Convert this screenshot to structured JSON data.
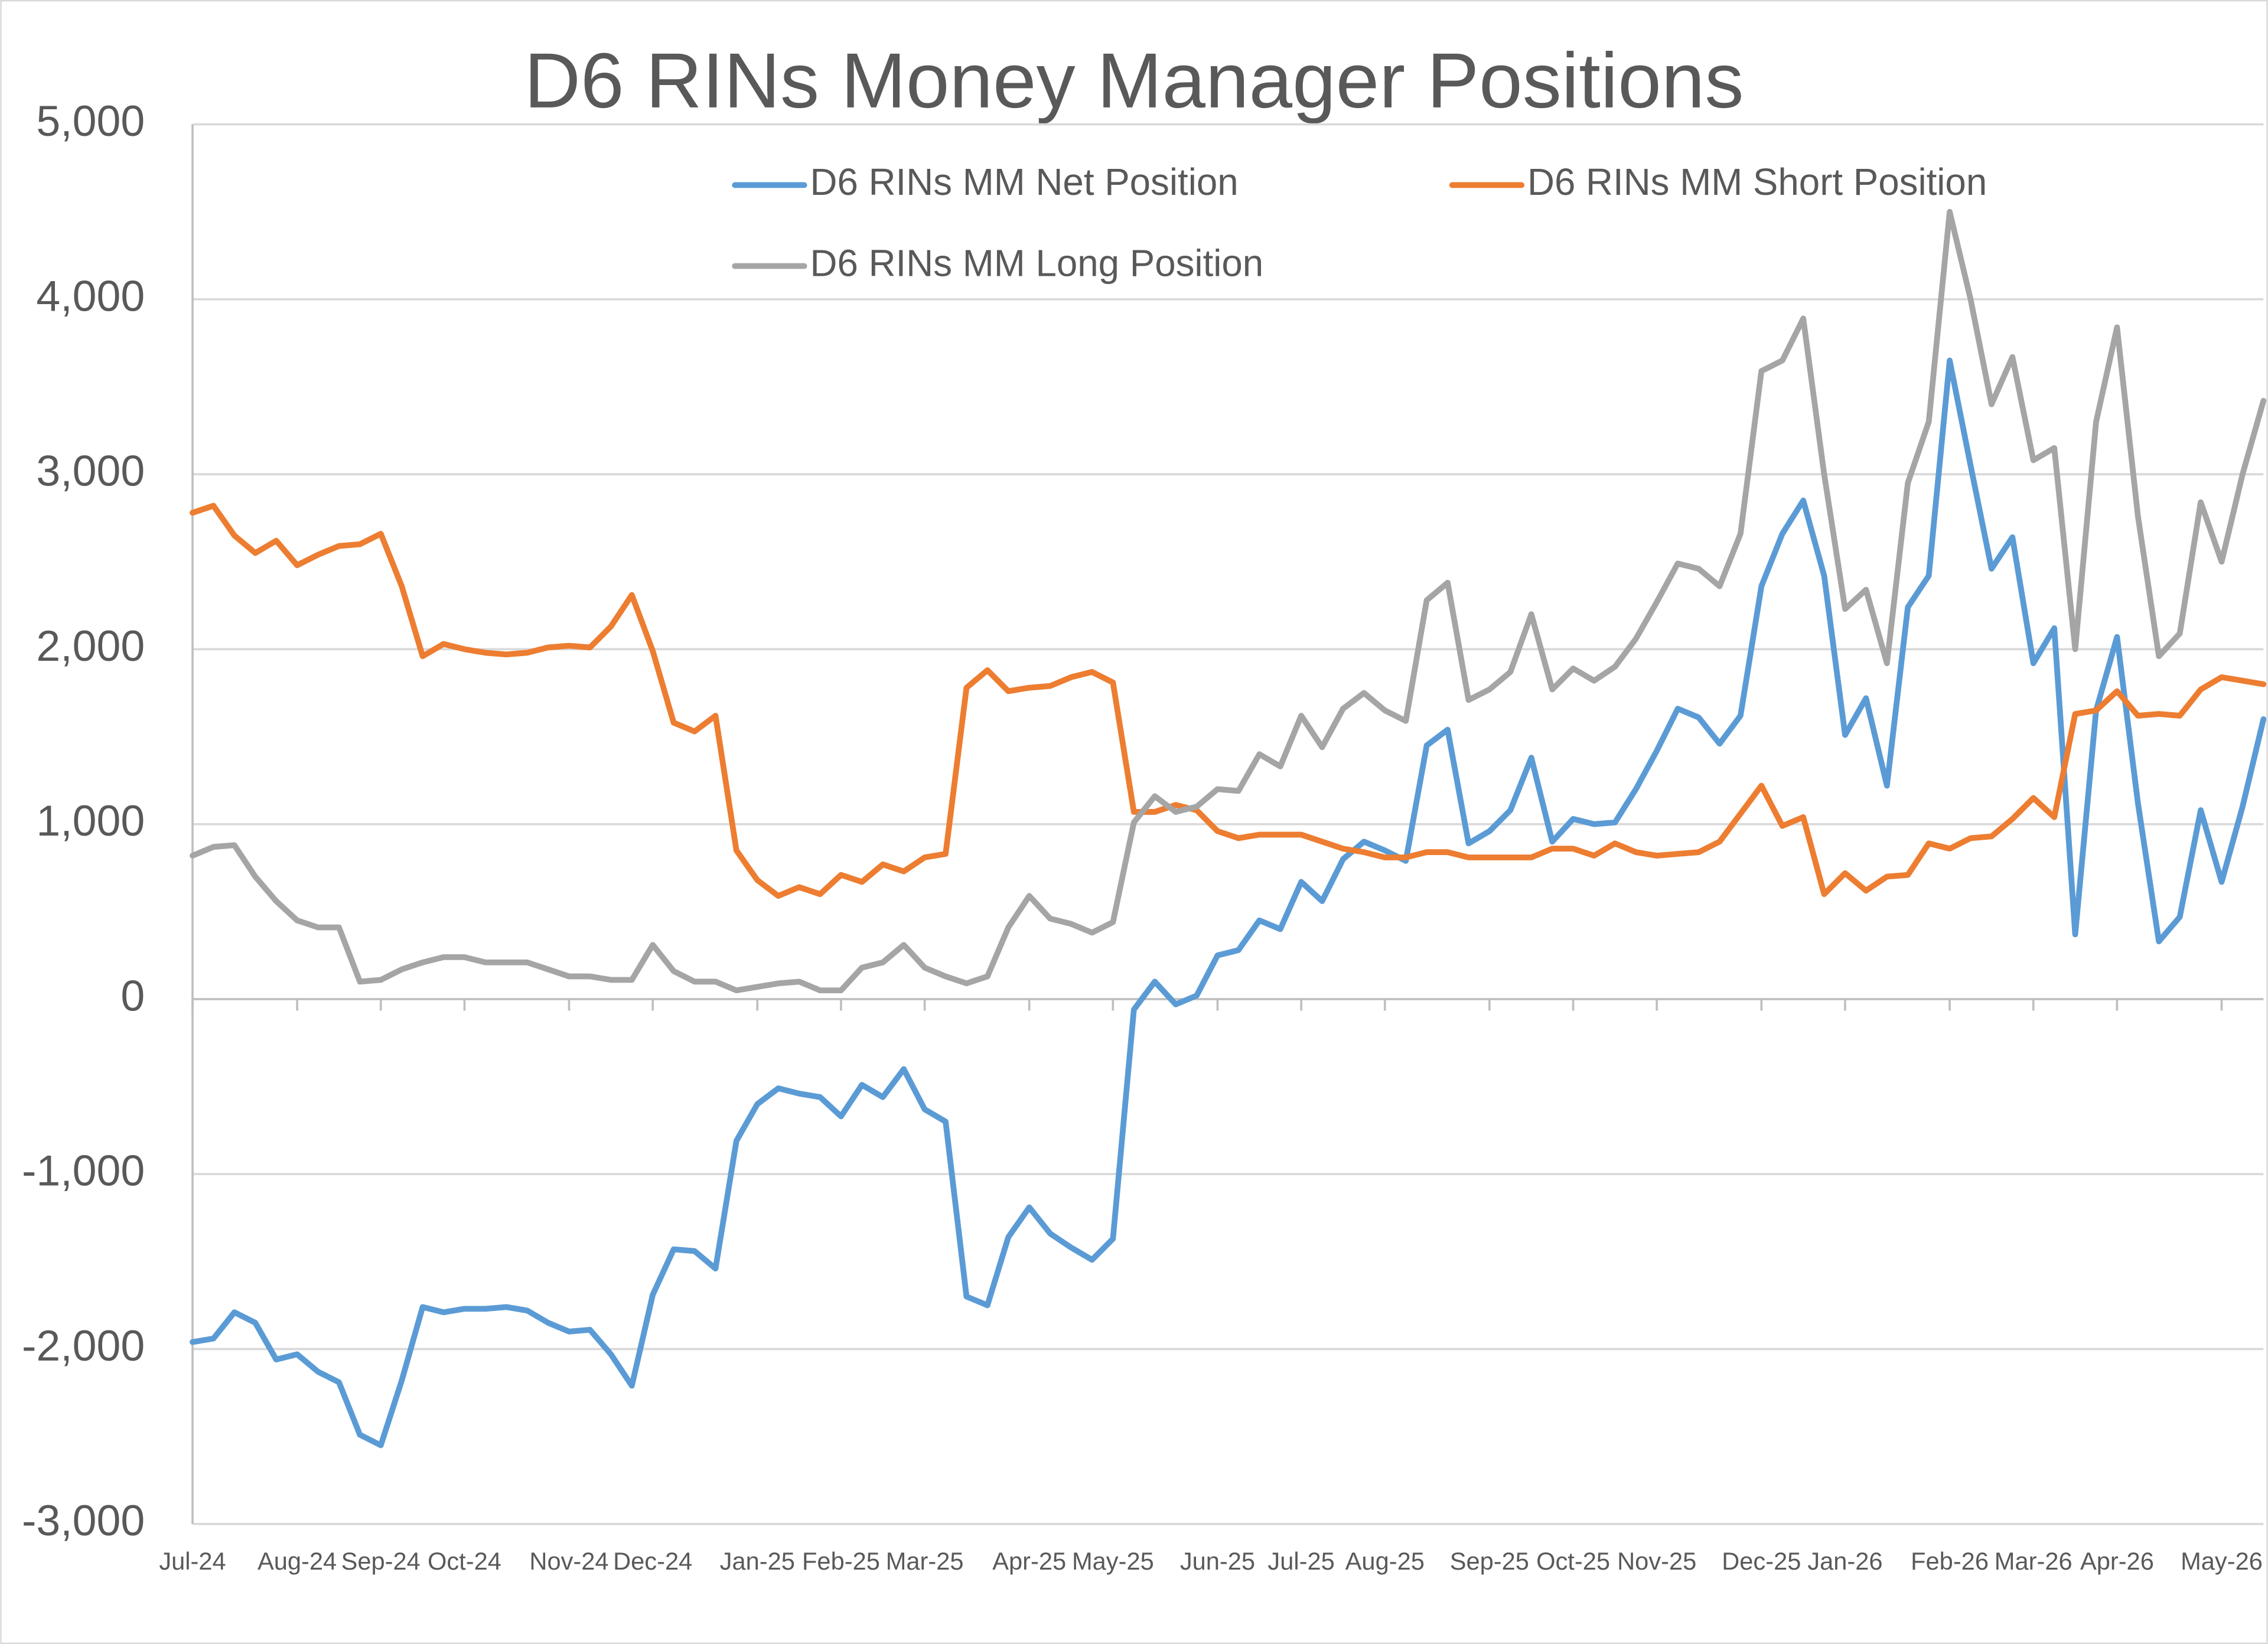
{
  "chart_data": {
    "type": "line",
    "title": "D6 RINs Money Manager Positions",
    "categories": [
      "Jul-24",
      null,
      null,
      null,
      null,
      "Aug-24",
      null,
      null,
      null,
      "Sep-24",
      null,
      null,
      null,
      "Oct-24",
      null,
      null,
      null,
      null,
      "Nov-24",
      null,
      null,
      null,
      "Dec-24",
      null,
      null,
      null,
      null,
      "Jan-25",
      null,
      null,
      null,
      "Feb-25",
      null,
      null,
      null,
      "Mar-25",
      null,
      null,
      null,
      null,
      "Apr-25",
      null,
      null,
      null,
      "May-25",
      null,
      null,
      null,
      null,
      "Jun-25",
      null,
      null,
      null,
      "Jul-25",
      null,
      null,
      null,
      "Aug-25",
      null,
      null,
      null,
      null,
      "Sep-25",
      null,
      null,
      null,
      "Oct-25",
      null,
      null,
      null,
      "Nov-25",
      null,
      null,
      null,
      null,
      "Dec-25",
      null,
      null,
      null,
      "Jan-26",
      null,
      null,
      null,
      null,
      "Feb-26",
      null,
      null,
      null,
      "Mar-26",
      null,
      null,
      null,
      "Apr-26",
      null,
      null,
      null,
      null,
      "May-26",
      null,
      null
    ],
    "series": [
      {
        "name": "D6 RINs MM Net Position",
        "color": "#5b9bd5",
        "values": [
          -1960,
          -1940,
          -1790,
          -1850,
          -2060,
          -2030,
          -2130,
          -2190,
          -2490,
          -2550,
          -2180,
          -1760,
          -1790,
          -1770,
          -1770,
          -1760,
          -1780,
          -1850,
          -1900,
          -1890,
          -2030,
          -2210,
          -1690,
          -1430,
          -1440,
          -1540,
          -810,
          -600,
          -510,
          -540,
          -560,
          -670,
          -490,
          -560,
          -400,
          -630,
          -700,
          -1700,
          -1750,
          -1360,
          -1190,
          -1340,
          -1420,
          -1490,
          -1370,
          -60,
          100,
          -30,
          20,
          250,
          280,
          450,
          400,
          670,
          560,
          800,
          900,
          850,
          790,
          1450,
          1540,
          890,
          960,
          1080,
          1380,
          900,
          1030,
          1000,
          1010,
          1200,
          1420,
          1660,
          1610,
          1460,
          1620,
          2360,
          2660,
          2850,
          2420,
          1510,
          1720,
          1220,
          2240,
          2420,
          3650,
          3050,
          2460,
          2640,
          1920,
          2120,
          370,
          1650,
          2070,
          1120,
          330,
          470,
          1080,
          670,
          1100,
          1600
        ]
      },
      {
        "name": "D6 RINs MM Short Position",
        "color": "#ed7d31",
        "values": [
          2780,
          2820,
          2650,
          2550,
          2620,
          2480,
          2540,
          2590,
          2600,
          2660,
          2360,
          1960,
          2030,
          2000,
          1980,
          1970,
          1980,
          2010,
          2020,
          2010,
          2130,
          2310,
          1990,
          1580,
          1530,
          1620,
          850,
          680,
          590,
          640,
          600,
          710,
          670,
          770,
          730,
          810,
          830,
          1780,
          1880,
          1760,
          1780,
          1790,
          1840,
          1870,
          1810,
          1070,
          1070,
          1110,
          1080,
          960,
          920,
          940,
          940,
          940,
          900,
          860,
          840,
          810,
          810,
          840,
          840,
          810,
          810,
          810,
          810,
          860,
          860,
          820,
          890,
          840,
          820,
          830,
          840,
          900,
          1060,
          1220,
          990,
          1040,
          600,
          720,
          620,
          700,
          710,
          890,
          860,
          920,
          930,
          1030,
          1150,
          1040,
          1630,
          1650,
          1760,
          1620,
          1630,
          1620,
          1770,
          1840,
          1820,
          1800
        ]
      },
      {
        "name": "D6 RINs MM Long Position",
        "color": "#a5a5a5",
        "values": [
          820,
          870,
          880,
          700,
          560,
          450,
          410,
          410,
          100,
          110,
          170,
          210,
          240,
          240,
          210,
          210,
          210,
          170,
          130,
          130,
          110,
          110,
          310,
          160,
          100,
          100,
          50,
          70,
          90,
          100,
          50,
          50,
          180,
          210,
          310,
          180,
          130,
          90,
          130,
          410,
          590,
          460,
          430,
          380,
          440,
          1010,
          1160,
          1070,
          1100,
          1200,
          1190,
          1400,
          1330,
          1620,
          1440,
          1660,
          1750,
          1650,
          1590,
          2280,
          2380,
          1710,
          1770,
          1870,
          2200,
          1770,
          1890,
          1820,
          1900,
          2060,
          2270,
          2490,
          2460,
          2360,
          2660,
          3590,
          3650,
          3890,
          3000,
          2230,
          2340,
          1920,
          2950,
          3300,
          4500,
          4000,
          3400,
          3670,
          3080,
          3150,
          2000,
          3300,
          3840,
          2760,
          1960,
          2090,
          2840,
          2500,
          3000,
          3420
        ]
      }
    ],
    "ylim": [
      -3000,
      5000
    ],
    "yticks": [
      {
        "value": -3000,
        "label": "-3,000"
      },
      {
        "value": -2000,
        "label": "-2,000"
      },
      {
        "value": -1000,
        "label": "-1,000"
      },
      0,
      {
        "value": 1000,
        "label": "1,000"
      },
      {
        "value": 2000,
        "label": "2,000"
      },
      {
        "value": 3000,
        "label": "3,000"
      },
      {
        "value": 4000,
        "label": "4,000"
      },
      {
        "value": 5000,
        "label": "5,000"
      }
    ],
    "grid": true
  }
}
